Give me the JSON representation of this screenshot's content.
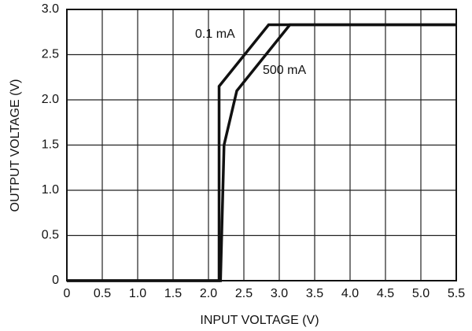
{
  "chart_data": {
    "type": "line",
    "x_label": "INPUT VOLTAGE (V)",
    "y_label": "OUTPUT VOLTAGE (V)",
    "series": [
      {
        "name": "0.1 mA",
        "color": "#111111",
        "x": [
          0,
          2.15,
          2.15,
          2.85,
          5.5
        ],
        "values": [
          0,
          0,
          2.15,
          2.83,
          2.83
        ]
      },
      {
        "name": "500 mA",
        "color": "#111111",
        "x": [
          0,
          2.17,
          2.22,
          2.4,
          3.15,
          5.5
        ],
        "values": [
          0,
          0,
          1.5,
          2.1,
          2.83,
          2.83
        ]
      }
    ],
    "xlim": [
      0,
      5.5
    ],
    "xticks": [
      0,
      0.5,
      {
        "value": 1,
        "label": "1.0"
      },
      1.5,
      {
        "value": 2,
        "label": "2.0"
      },
      2.5,
      {
        "value": 3,
        "label": "3.0"
      },
      3.5,
      {
        "value": 4,
        "label": "4.0"
      },
      4.5,
      {
        "value": 5,
        "label": "5.0"
      },
      5.5
    ],
    "ylim": [
      0,
      3
    ],
    "yticks": [
      0,
      0.5,
      {
        "value": 1,
        "label": "1.0"
      },
      1.5,
      {
        "value": 2,
        "label": "2.0"
      },
      2.5,
      {
        "value": 3,
        "label": "3.0"
      }
    ],
    "grid": true
  }
}
